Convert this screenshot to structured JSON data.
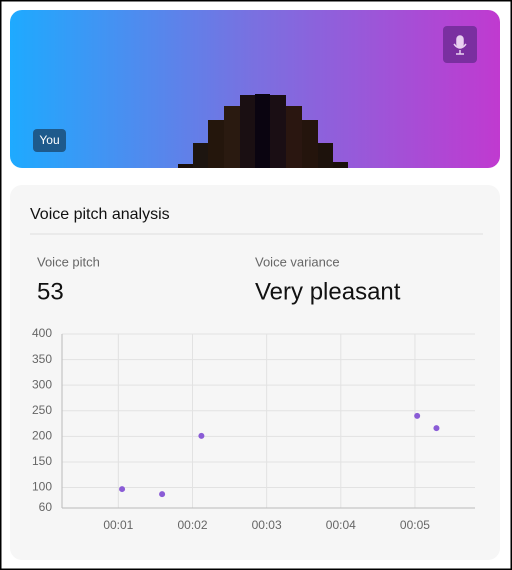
{
  "header": {
    "badge": "You"
  },
  "panel": {
    "title": "Voice pitch analysis",
    "stats": [
      {
        "label": "Voice pitch",
        "value": "53"
      },
      {
        "label": "Voice variance",
        "value": "Very pleasant"
      }
    ]
  },
  "chart_data": {
    "type": "scatter",
    "x": [
      1.05,
      1.59,
      2.12,
      5.03,
      5.29
    ],
    "values": [
      97,
      87,
      201,
      240,
      216
    ],
    "color": "#8a5cd6",
    "xlim": [
      0.24,
      5.81
    ],
    "ylim": [
      60,
      400
    ],
    "xticks": [
      {
        "value": 1,
        "label": "00:01"
      },
      {
        "value": 2,
        "label": "00:02"
      },
      {
        "value": 3,
        "label": "00:03"
      },
      {
        "value": 4,
        "label": "00:04"
      },
      {
        "value": 5,
        "label": "00:05"
      }
    ],
    "yticks": [
      60,
      100,
      150,
      200,
      250,
      300,
      350,
      400
    ],
    "grid": true
  }
}
